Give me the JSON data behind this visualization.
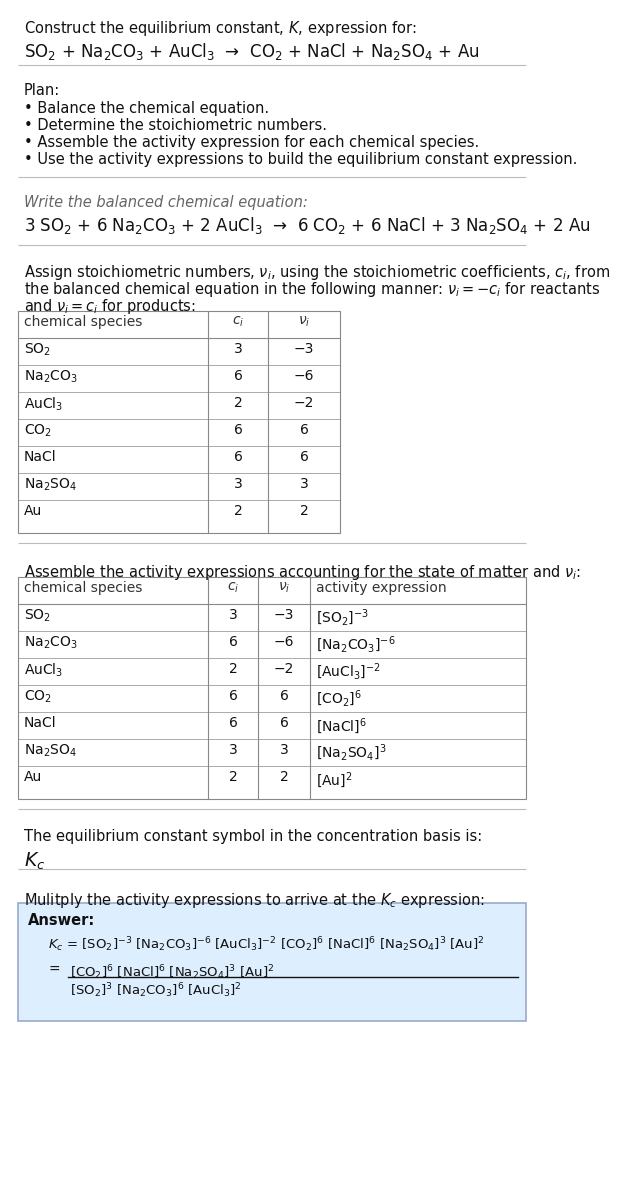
{
  "title_line1": "Construct the equilibrium constant, $K$, expression for:",
  "title_line2": "SO$_2$ + Na$_2$CO$_3$ + AuCl$_3$  →  CO$_2$ + NaCl + Na$_2$SO$_4$ + Au",
  "plan_header": "Plan:",
  "plan_items": [
    "• Balance the chemical equation.",
    "• Determine the stoichiometric numbers.",
    "• Assemble the activity expression for each chemical species.",
    "• Use the activity expressions to build the equilibrium constant expression."
  ],
  "balanced_header": "Write the balanced chemical equation:",
  "balanced_eq": "3 SO$_2$ + 6 Na$_2$CO$_3$ + 2 AuCl$_3$  →  6 CO$_2$ + 6 NaCl + 3 Na$_2$SO$_4$ + 2 Au",
  "stoich_intro1": "Assign stoichiometric numbers, $\\nu_i$, using the stoichiometric coefficients, $c_i$, from",
  "stoich_intro2": "the balanced chemical equation in the following manner: $\\nu_i = -c_i$ for reactants",
  "stoich_intro3": "and $\\nu_i = c_i$ for products:",
  "table1_col_headers": [
    "chemical species",
    "$c_i$",
    "$\\nu_i$"
  ],
  "table1_rows": [
    [
      "SO$_2$",
      "3",
      "−3"
    ],
    [
      "Na$_2$CO$_3$",
      "6",
      "−6"
    ],
    [
      "AuCl$_3$",
      "2",
      "−2"
    ],
    [
      "CO$_2$",
      "6",
      "6"
    ],
    [
      "NaCl",
      "6",
      "6"
    ],
    [
      "Na$_2$SO$_4$",
      "3",
      "3"
    ],
    [
      "Au",
      "2",
      "2"
    ]
  ],
  "activity_intro": "Assemble the activity expressions accounting for the state of matter and $\\nu_i$:",
  "table2_col_headers": [
    "chemical species",
    "$c_i$",
    "$\\nu_i$",
    "activity expression"
  ],
  "table2_rows": [
    [
      "SO$_2$",
      "3",
      "−3",
      "[SO$_2$]$^{-3}$"
    ],
    [
      "Na$_2$CO$_3$",
      "6",
      "−6",
      "[Na$_2$CO$_3$]$^{-6}$"
    ],
    [
      "AuCl$_3$",
      "2",
      "−2",
      "[AuCl$_3$]$^{-2}$"
    ],
    [
      "CO$_2$",
      "6",
      "6",
      "[CO$_2$]$^6$"
    ],
    [
      "NaCl",
      "6",
      "6",
      "[NaCl]$^6$"
    ],
    [
      "Na$_2$SO$_4$",
      "3",
      "3",
      "[Na$_2$SO$_4$]$^3$"
    ],
    [
      "Au",
      "2",
      "2",
      "[Au]$^2$"
    ]
  ],
  "kc_intro": "The equilibrium constant symbol in the concentration basis is:",
  "kc_symbol": "$K_c$",
  "multiply_intro": "Mulitply the activity expressions to arrive at the $K_c$ expression:",
  "answer_label": "Answer:",
  "answer_line1": "$K_c$ = [SO$_2$]$^{-3}$ [Na$_2$CO$_3$]$^{-6}$ [AuCl$_3$]$^{-2}$ [CO$_2$]$^6$ [NaCl]$^6$ [Na$_2$SO$_4$]$^3$ [Au]$^2$",
  "answer_eq": "=",
  "answer_num": "[CO$_2$]$^6$ [NaCl]$^6$ [Na$_2$SO$_4$]$^3$ [Au]$^2$",
  "answer_den": "[SO$_2$]$^3$ [Na$_2$CO$_3$]$^6$ [AuCl$_3$]$^2$",
  "bg_color": "#ffffff",
  "line_color": "#bbbbbb",
  "table_border": "#888888",
  "answer_bg": "#ddeeff",
  "answer_border": "#99aacc"
}
